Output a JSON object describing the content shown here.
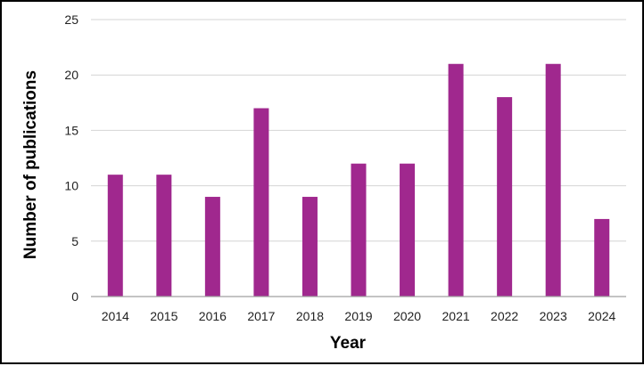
{
  "chart_data": {
    "type": "bar",
    "title": "",
    "xlabel": "Year",
    "ylabel": "Number of publications",
    "categories": [
      "2014",
      "2015",
      "2016",
      "2017",
      "2018",
      "2019",
      "2020",
      "2021",
      "2022",
      "2023",
      "2024"
    ],
    "values": [
      11,
      11,
      9,
      17,
      9,
      12,
      12,
      21,
      18,
      21,
      7
    ],
    "ylim": [
      0,
      25
    ],
    "yticks": [
      "0",
      "5",
      "10",
      "15",
      "20",
      "25"
    ],
    "grid": "horizontal",
    "legend": "none",
    "bar_color": "#a0288e",
    "grid_color": "#d4d4d4",
    "axis_color": "#a0a0a0"
  }
}
